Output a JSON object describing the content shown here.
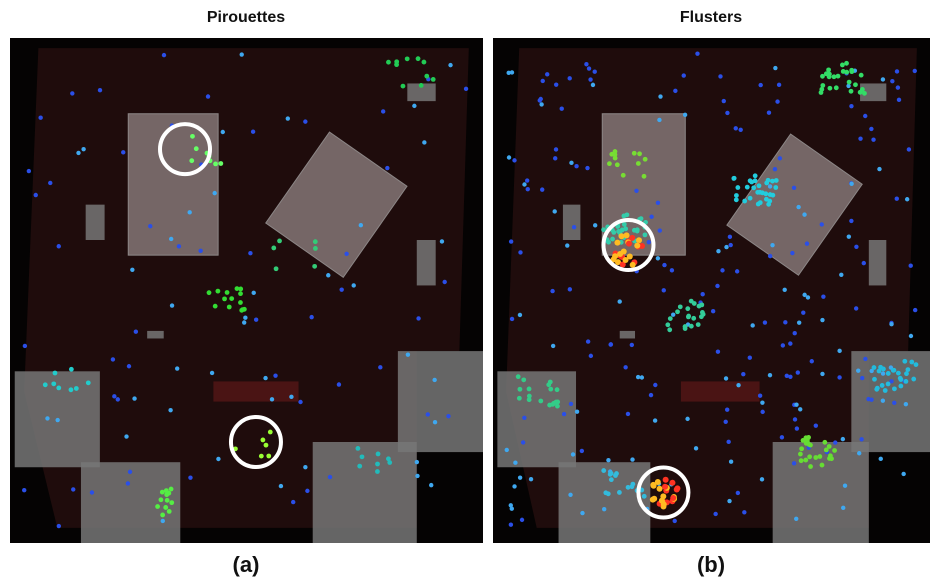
{
  "panels": [
    {
      "title": "Pirouettes",
      "caption": "(a)"
    },
    {
      "title": "Flusters",
      "caption": "(b)"
    }
  ]
}
